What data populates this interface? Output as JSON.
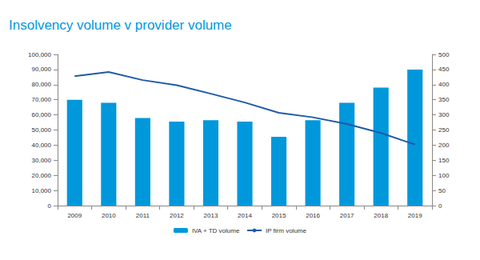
{
  "chart_data": {
    "type": "bar",
    "title": "Insolvency volume v provider volume",
    "categories": [
      "2009",
      "2010",
      "2011",
      "2012",
      "2013",
      "2014",
      "2015",
      "2016",
      "2017",
      "2018",
      "2019"
    ],
    "series": [
      {
        "name": "IVA + TD volume",
        "type": "bar",
        "color": "#0098db",
        "axis": "y",
        "values": [
          70000,
          68000,
          58000,
          55500,
          56500,
          55500,
          45500,
          56500,
          68000,
          78000,
          90000
        ]
      },
      {
        "name": "IP firm volume",
        "type": "line",
        "color": "#1e5aa8",
        "axis": "y2",
        "marker": "none",
        "line_style": "solid",
        "values": [
          428,
          442,
          415,
          398,
          370,
          341,
          307,
          292,
          270,
          240,
          202
        ]
      }
    ],
    "ylim": [
      0,
      100000
    ],
    "yticks": [
      0,
      {
        "value": 10000,
        "label": "10,000"
      },
      {
        "value": 20000,
        "label": "20,000"
      },
      {
        "value": 30000,
        "label": "30,000"
      },
      {
        "value": 40000,
        "label": "40,000"
      },
      {
        "value": 50000,
        "label": "50,000"
      },
      {
        "value": 60000,
        "label": "60,000"
      },
      {
        "value": 70000,
        "label": "70,000"
      },
      {
        "value": 80000,
        "label": "80,000"
      },
      {
        "value": 90000,
        "label": "90,000"
      },
      {
        "value": 100000,
        "label": "100,000"
      }
    ],
    "y2lim": [
      0,
      500
    ],
    "y2ticks": [
      0,
      50,
      100,
      150,
      200,
      250,
      300,
      350,
      400,
      450,
      500
    ],
    "grid": false,
    "legend": "bottom"
  }
}
